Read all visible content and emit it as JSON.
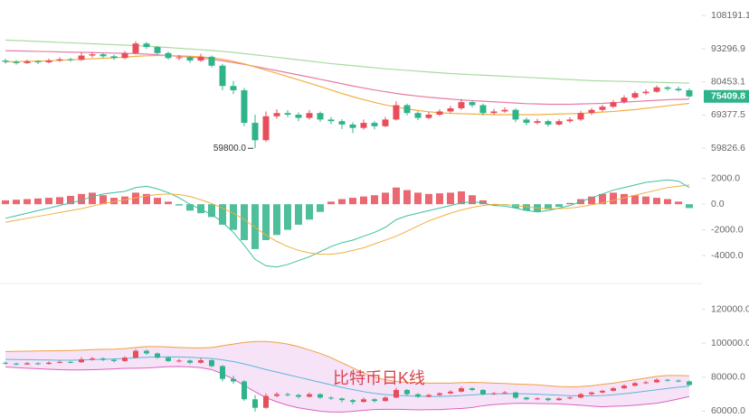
{
  "chart_data": [
    {
      "type": "candlestick",
      "log": true,
      "ylim": [
        55000,
        116000
      ],
      "yticks": [
        108191.1,
        93296.9,
        80453.1,
        69377.5,
        59826.6
      ],
      "up_color": "#e84d5b",
      "down_color": "#2fb38a",
      "last_price": 75409.8,
      "annotation": {
        "value": 59800,
        "label": "59800.0"
      },
      "candles": [
        [
          88500,
          89200,
          87300,
          88000
        ],
        [
          88000,
          88600,
          86900,
          87500
        ],
        [
          87500,
          88900,
          87200,
          88200
        ],
        [
          88200,
          88700,
          87100,
          87800
        ],
        [
          87800,
          89300,
          87400,
          88500
        ],
        [
          88500,
          89800,
          88000,
          89000
        ],
        [
          89000,
          89600,
          88100,
          88800
        ],
        [
          88800,
          91800,
          88400,
          90500
        ],
        [
          90500,
          92000,
          89700,
          91000
        ],
        [
          91000,
          91600,
          89500,
          90200
        ],
        [
          90200,
          90900,
          88700,
          89500
        ],
        [
          89500,
          92300,
          89100,
          91500
        ],
        [
          91500,
          96500,
          91000,
          95500
        ],
        [
          95500,
          96200,
          93200,
          94000
        ],
        [
          94000,
          94500,
          90800,
          91500
        ],
        [
          91500,
          92100,
          88900,
          89500
        ],
        [
          89500,
          90800,
          88600,
          89800
        ],
        [
          89800,
          90400,
          87600,
          88500
        ],
        [
          88500,
          91200,
          88000,
          90000
        ],
        [
          90000,
          90500,
          85800,
          86500
        ],
        [
          86500,
          87200,
          77500,
          79000
        ],
        [
          79000,
          80800,
          76200,
          77500
        ],
        [
          77500,
          78300,
          66000,
          67000
        ],
        [
          67000,
          69500,
          59800,
          62000
        ],
        [
          62000,
          70500,
          61500,
          69000
        ],
        [
          69000,
          71200,
          68200,
          70000
        ],
        [
          70000,
          70900,
          68700,
          69500
        ],
        [
          69500,
          70200,
          67500,
          68500
        ],
        [
          68500,
          71000,
          68000,
          70000
        ],
        [
          70000,
          70500,
          67300,
          68000
        ],
        [
          68000,
          68800,
          66600,
          67500
        ],
        [
          67500,
          68100,
          65200,
          66500
        ],
        [
          66500,
          67200,
          64000,
          65500
        ],
        [
          65500,
          68000,
          65000,
          67000
        ],
        [
          67000,
          67600,
          65100,
          66000
        ],
        [
          66000,
          68800,
          65700,
          68000
        ],
        [
          68000,
          73800,
          67700,
          72500
        ],
        [
          72500,
          73000,
          69300,
          70000
        ],
        [
          70000,
          70600,
          67800,
          68500
        ],
        [
          68500,
          70300,
          68100,
          69500
        ],
        [
          69500,
          71200,
          69000,
          70500
        ],
        [
          70500,
          72300,
          70000,
          71500
        ],
        [
          71500,
          74500,
          71000,
          73500
        ],
        [
          73500,
          74000,
          71800,
          72500
        ],
        [
          72500,
          73000,
          69300,
          70000
        ],
        [
          70000,
          71300,
          69500,
          70500
        ],
        [
          70500,
          71800,
          70100,
          71000
        ],
        [
          71000,
          71500,
          67200,
          68000
        ],
        [
          68000,
          68600,
          66300,
          67000
        ],
        [
          67000,
          68200,
          66500,
          67500
        ],
        [
          67500,
          68000,
          65900,
          66500
        ],
        [
          66500,
          68100,
          66200,
          67500
        ],
        [
          67500,
          68700,
          67000,
          68000
        ],
        [
          68000,
          70700,
          67600,
          70000
        ],
        [
          70000,
          71600,
          69400,
          71000
        ],
        [
          71000,
          72600,
          70500,
          72000
        ],
        [
          72000,
          74200,
          71600,
          73500
        ],
        [
          73500,
          75800,
          73000,
          75000
        ],
        [
          75000,
          77200,
          74500,
          76500
        ],
        [
          76500,
          77800,
          75900,
          77000
        ],
        [
          77000,
          79200,
          76600,
          78500
        ],
        [
          78500,
          79000,
          77300,
          78000
        ],
        [
          78000,
          78800,
          77000,
          77500
        ],
        [
          77500,
          78200,
          75000,
          75409.8
        ]
      ],
      "series": [
        {
          "color": "#a9dba0",
          "values": [
            97000,
            96800,
            96600,
            96400,
            96200,
            96000,
            95800,
            95600,
            95400,
            95200,
            95000,
            94800,
            94600,
            94400,
            94100,
            93800,
            93500,
            93200,
            92900,
            92600,
            92200,
            91800,
            91300,
            90800,
            90300,
            89800,
            89300,
            88800,
            88300,
            87800,
            87300,
            86900,
            86500,
            86100,
            85700,
            85300,
            85000,
            84700,
            84400,
            84100,
            83800,
            83500,
            83300,
            83100,
            82900,
            82700,
            82500,
            82300,
            82100,
            81900,
            81700,
            81500,
            81300,
            81100,
            80900,
            80800,
            80700,
            80600,
            80500,
            80400,
            80300,
            80200,
            80100,
            80000
          ]
        },
        {
          "color": "#e87aa8",
          "values": [
            92500,
            92400,
            92300,
            92200,
            92100,
            92000,
            91900,
            91800,
            91700,
            91600,
            91500,
            91400,
            91300,
            91100,
            90800,
            90500,
            90200,
            89900,
            89500,
            89000,
            88400,
            87700,
            87000,
            86200,
            85400,
            84600,
            83800,
            83000,
            82200,
            81400,
            80600,
            79800,
            79000,
            78300,
            77600,
            77000,
            76400,
            75900,
            75500,
            75100,
            74800,
            74500,
            74200,
            74000,
            73800,
            73600,
            73400,
            73200,
            73000,
            72900,
            72800,
            72800,
            72800,
            72900,
            73000,
            73100,
            73300,
            73500,
            73700,
            73900,
            74100,
            74300,
            74400,
            74500
          ]
        },
        {
          "color": "#f0b040",
          "values": [
            88000,
            88100,
            88200,
            88300,
            88400,
            88600,
            88800,
            89000,
            89200,
            89400,
            89600,
            89900,
            90200,
            90400,
            90500,
            90500,
            90400,
            90200,
            90000,
            89600,
            89000,
            88200,
            87200,
            86000,
            84800,
            83600,
            82400,
            81200,
            80000,
            78800,
            77600,
            76400,
            75300,
            74300,
            73400,
            72600,
            71900,
            71300,
            70800,
            70400,
            70100,
            69900,
            69800,
            69700,
            69600,
            69500,
            69500,
            69500,
            69500,
            69500,
            69600,
            69700,
            69800,
            69900,
            70100,
            70300,
            70500,
            70800,
            71100,
            71500,
            71900,
            72300,
            72700,
            73100
          ]
        }
      ]
    },
    {
      "type": "macd",
      "ylim": [
        -5900,
        2900
      ],
      "yticks": [
        {
          "value": 2000,
          "label": "2000.0"
        },
        {
          "value": 0,
          "label": "0.0"
        },
        {
          "value": -2000,
          "label": "-2000.0"
        },
        {
          "value": -4000,
          "label": "-4000.0"
        }
      ],
      "up_color": "#e84d5b",
      "down_color": "#2fb38a",
      "histogram": [
        300,
        350,
        400,
        450,
        500,
        550,
        650,
        800,
        900,
        700,
        500,
        600,
        900,
        800,
        500,
        200,
        -100,
        -500,
        -700,
        -1000,
        -1600,
        -2000,
        -2800,
        -3500,
        -2800,
        -2400,
        -2000,
        -1600,
        -1200,
        -600,
        200,
        400,
        500,
        600,
        700,
        900,
        1300,
        1100,
        900,
        800,
        850,
        900,
        1000,
        700,
        300,
        -100,
        -50,
        -300,
        -500,
        -600,
        -400,
        -200,
        100,
        400,
        600,
        800,
        900,
        800,
        700,
        600,
        500,
        400,
        200,
        -300
      ],
      "series": [
        {
          "color": "#3cc0a0",
          "values": [
            -1100,
            -900,
            -700,
            -500,
            -300,
            -100,
            100,
            300,
            600,
            800,
            900,
            1000,
            1300,
            1400,
            1200,
            900,
            500,
            0,
            -400,
            -800,
            -1400,
            -2200,
            -3200,
            -4300,
            -4800,
            -4900,
            -4700,
            -4400,
            -4100,
            -3700,
            -3300,
            -3000,
            -2800,
            -2500,
            -2200,
            -1800,
            -1200,
            -900,
            -700,
            -500,
            -300,
            -100,
            100,
            200,
            100,
            -100,
            -150,
            -300,
            -500,
            -600,
            -500,
            -300,
            -100,
            200,
            500,
            800,
            1100,
            1300,
            1500,
            1700,
            1800,
            1900,
            1800,
            1300
          ]
        },
        {
          "color": "#f0b040",
          "values": [
            -1400,
            -1250,
            -1100,
            -950,
            -800,
            -650,
            -500,
            -350,
            -150,
            50,
            200,
            350,
            500,
            650,
            750,
            800,
            750,
            600,
            350,
            50,
            -300,
            -700,
            -1200,
            -1800,
            -2400,
            -2900,
            -3300,
            -3600,
            -3800,
            -3900,
            -3900,
            -3800,
            -3600,
            -3400,
            -3100,
            -2800,
            -2500,
            -2100,
            -1700,
            -1300,
            -1000,
            -700,
            -450,
            -250,
            -100,
            0,
            -50,
            -100,
            -200,
            -300,
            -350,
            -350,
            -300,
            -200,
            -50,
            100,
            300,
            500,
            700,
            900,
            1100,
            1300,
            1400,
            1500
          ]
        }
      ]
    },
    {
      "type": "bollinger",
      "ylim": [
        56000,
        133000
      ],
      "yticks": [
        {
          "value": 120000,
          "label": "120000.0"
        },
        {
          "value": 100000,
          "label": "100000.0"
        },
        {
          "value": 80000,
          "label": "80000.0"
        },
        {
          "value": 60000,
          "label": "60000.0"
        }
      ],
      "annotation": "比特币日K线",
      "annotation_color": "#d9434f",
      "band_fill": "#f4dcf6",
      "series": [
        {
          "color": "#f0a040",
          "values": [
            95000,
            95200,
            95300,
            95400,
            95500,
            95600,
            95700,
            95900,
            96200,
            96400,
            96500,
            96800,
            97500,
            98000,
            98000,
            97800,
            97500,
            97300,
            97200,
            97500,
            98500,
            99500,
            100500,
            101000,
            101000,
            100500,
            99500,
            98000,
            96000,
            94000,
            91500,
            88500,
            85500,
            82500,
            80000,
            78500,
            77500,
            77000,
            76800,
            76500,
            76500,
            76500,
            76800,
            77000,
            76800,
            76500,
            76300,
            76000,
            75800,
            75500,
            75000,
            74500,
            74300,
            74500,
            75000,
            75800,
            76500,
            77500,
            78500,
            79500,
            80500,
            81000,
            81000,
            80800
          ]
        },
        {
          "color": "#5bb8d8",
          "values": [
            90500,
            90400,
            90300,
            90200,
            90100,
            90000,
            90000,
            90100,
            90300,
            90500,
            90700,
            91000,
            91400,
            91700,
            91900,
            92000,
            91900,
            91700,
            91400,
            91000,
            90200,
            89200,
            87800,
            86200,
            84500,
            83000,
            81500,
            80000,
            78500,
            77000,
            75500,
            74000,
            72700,
            71500,
            70500,
            69800,
            69300,
            69000,
            68800,
            68700,
            68700,
            68900,
            69200,
            69600,
            70000,
            70200,
            70300,
            70300,
            70200,
            70000,
            69700,
            69400,
            69100,
            69000,
            69000,
            69200,
            69700,
            70300,
            71000,
            71800,
            72600,
            73400,
            74100,
            74700
          ]
        },
        {
          "color": "#e060c0",
          "values": [
            86000,
            85600,
            85300,
            85000,
            84700,
            84400,
            84300,
            84300,
            84400,
            84600,
            84900,
            85200,
            85300,
            85400,
            85800,
            86200,
            86300,
            86100,
            85600,
            84500,
            81900,
            78900,
            75100,
            71400,
            68000,
            65500,
            63500,
            62000,
            61000,
            60000,
            59500,
            59500,
            59900,
            60500,
            61000,
            61100,
            61100,
            61000,
            60800,
            60900,
            60900,
            61300,
            61600,
            62200,
            63200,
            63900,
            64300,
            64600,
            64600,
            64500,
            64400,
            64300,
            63900,
            63500,
            63000,
            62600,
            62900,
            63100,
            63500,
            64100,
            64700,
            65800,
            67200,
            68600
          ]
        }
      ]
    }
  ]
}
